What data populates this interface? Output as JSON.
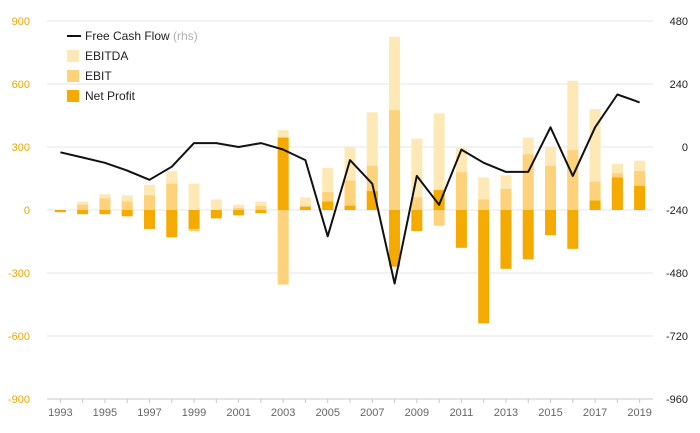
{
  "chart_data": {
    "type": "bar",
    "x": [
      1993,
      1994,
      1995,
      1996,
      1997,
      1998,
      1999,
      2000,
      2001,
      2002,
      2003,
      2004,
      2005,
      2006,
      2007,
      2008,
      2009,
      2010,
      2011,
      2012,
      2013,
      2014,
      2015,
      2016,
      2017,
      2018,
      2019
    ],
    "x_tick_labels": [
      "1993",
      "1995",
      "1997",
      "1999",
      "2001",
      "2003",
      "2005",
      "2007",
      "2009",
      "2011",
      "2013",
      "2015",
      "2017",
      "2019"
    ],
    "left_axis": {
      "ylim": [
        -900,
        900
      ],
      "ticks": [
        "900",
        "600",
        "300",
        "0",
        "-300",
        "-600",
        "-900"
      ],
      "tick_values": [
        900,
        600,
        300,
        0,
        -300,
        -600,
        -900
      ]
    },
    "right_axis": {
      "ylim": [
        -960,
        480
      ],
      "ticks": [
        "480",
        "240",
        "0",
        "-240",
        "-480",
        "-720",
        "-960"
      ],
      "tick_values": [
        480,
        240,
        0,
        -240,
        -480,
        -720,
        -960
      ]
    },
    "grid": true,
    "legend_position": "top-left",
    "legend": {
      "fcf": {
        "name": "Free Cash Flow",
        "note": "(rhs)"
      },
      "ebitda": {
        "name": "EBITDA"
      },
      "ebit": {
        "name": "EBIT"
      },
      "net": {
        "name": "Net Profit"
      }
    },
    "series": [
      {
        "key": "ebitda",
        "name": "EBITDA",
        "type": "bar",
        "axis": "left",
        "color": "#fde8b6",
        "values": [
          -10,
          40,
          75,
          70,
          120,
          185,
          125,
          50,
          25,
          40,
          380,
          60,
          200,
          300,
          465,
          825,
          340,
          460,
          295,
          155,
          165,
          345,
          300,
          615,
          480,
          220,
          235
        ]
      },
      {
        "key": "ebit",
        "name": "EBIT",
        "type": "bar",
        "axis": "left",
        "color": "#fdd27a",
        "values": [
          -10,
          25,
          55,
          40,
          70,
          125,
          -100,
          -30,
          10,
          20,
          -355,
          20,
          85,
          140,
          210,
          475,
          60,
          -75,
          180,
          50,
          100,
          265,
          210,
          285,
          135,
          175,
          185
        ]
      },
      {
        "key": "net",
        "name": "Net Profit",
        "type": "bar",
        "axis": "left",
        "color": "#f5aa00",
        "values": [
          -10,
          -20,
          -20,
          -30,
          -90,
          -130,
          -90,
          -40,
          -25,
          -15,
          345,
          15,
          40,
          20,
          90,
          -270,
          -100,
          95,
          -180,
          -540,
          -280,
          -235,
          -120,
          -185,
          45,
          155,
          115
        ]
      },
      {
        "key": "fcf",
        "name": "Free Cash Flow",
        "type": "line",
        "axis": "right",
        "color": "#111111",
        "values": [
          -20,
          -40,
          -60,
          -90,
          -125,
          -75,
          15,
          15,
          0,
          15,
          -10,
          -50,
          -340,
          -50,
          -140,
          -520,
          -110,
          -220,
          -10,
          -60,
          -95,
          -95,
          75,
          -110,
          75,
          200,
          170
        ]
      }
    ]
  }
}
